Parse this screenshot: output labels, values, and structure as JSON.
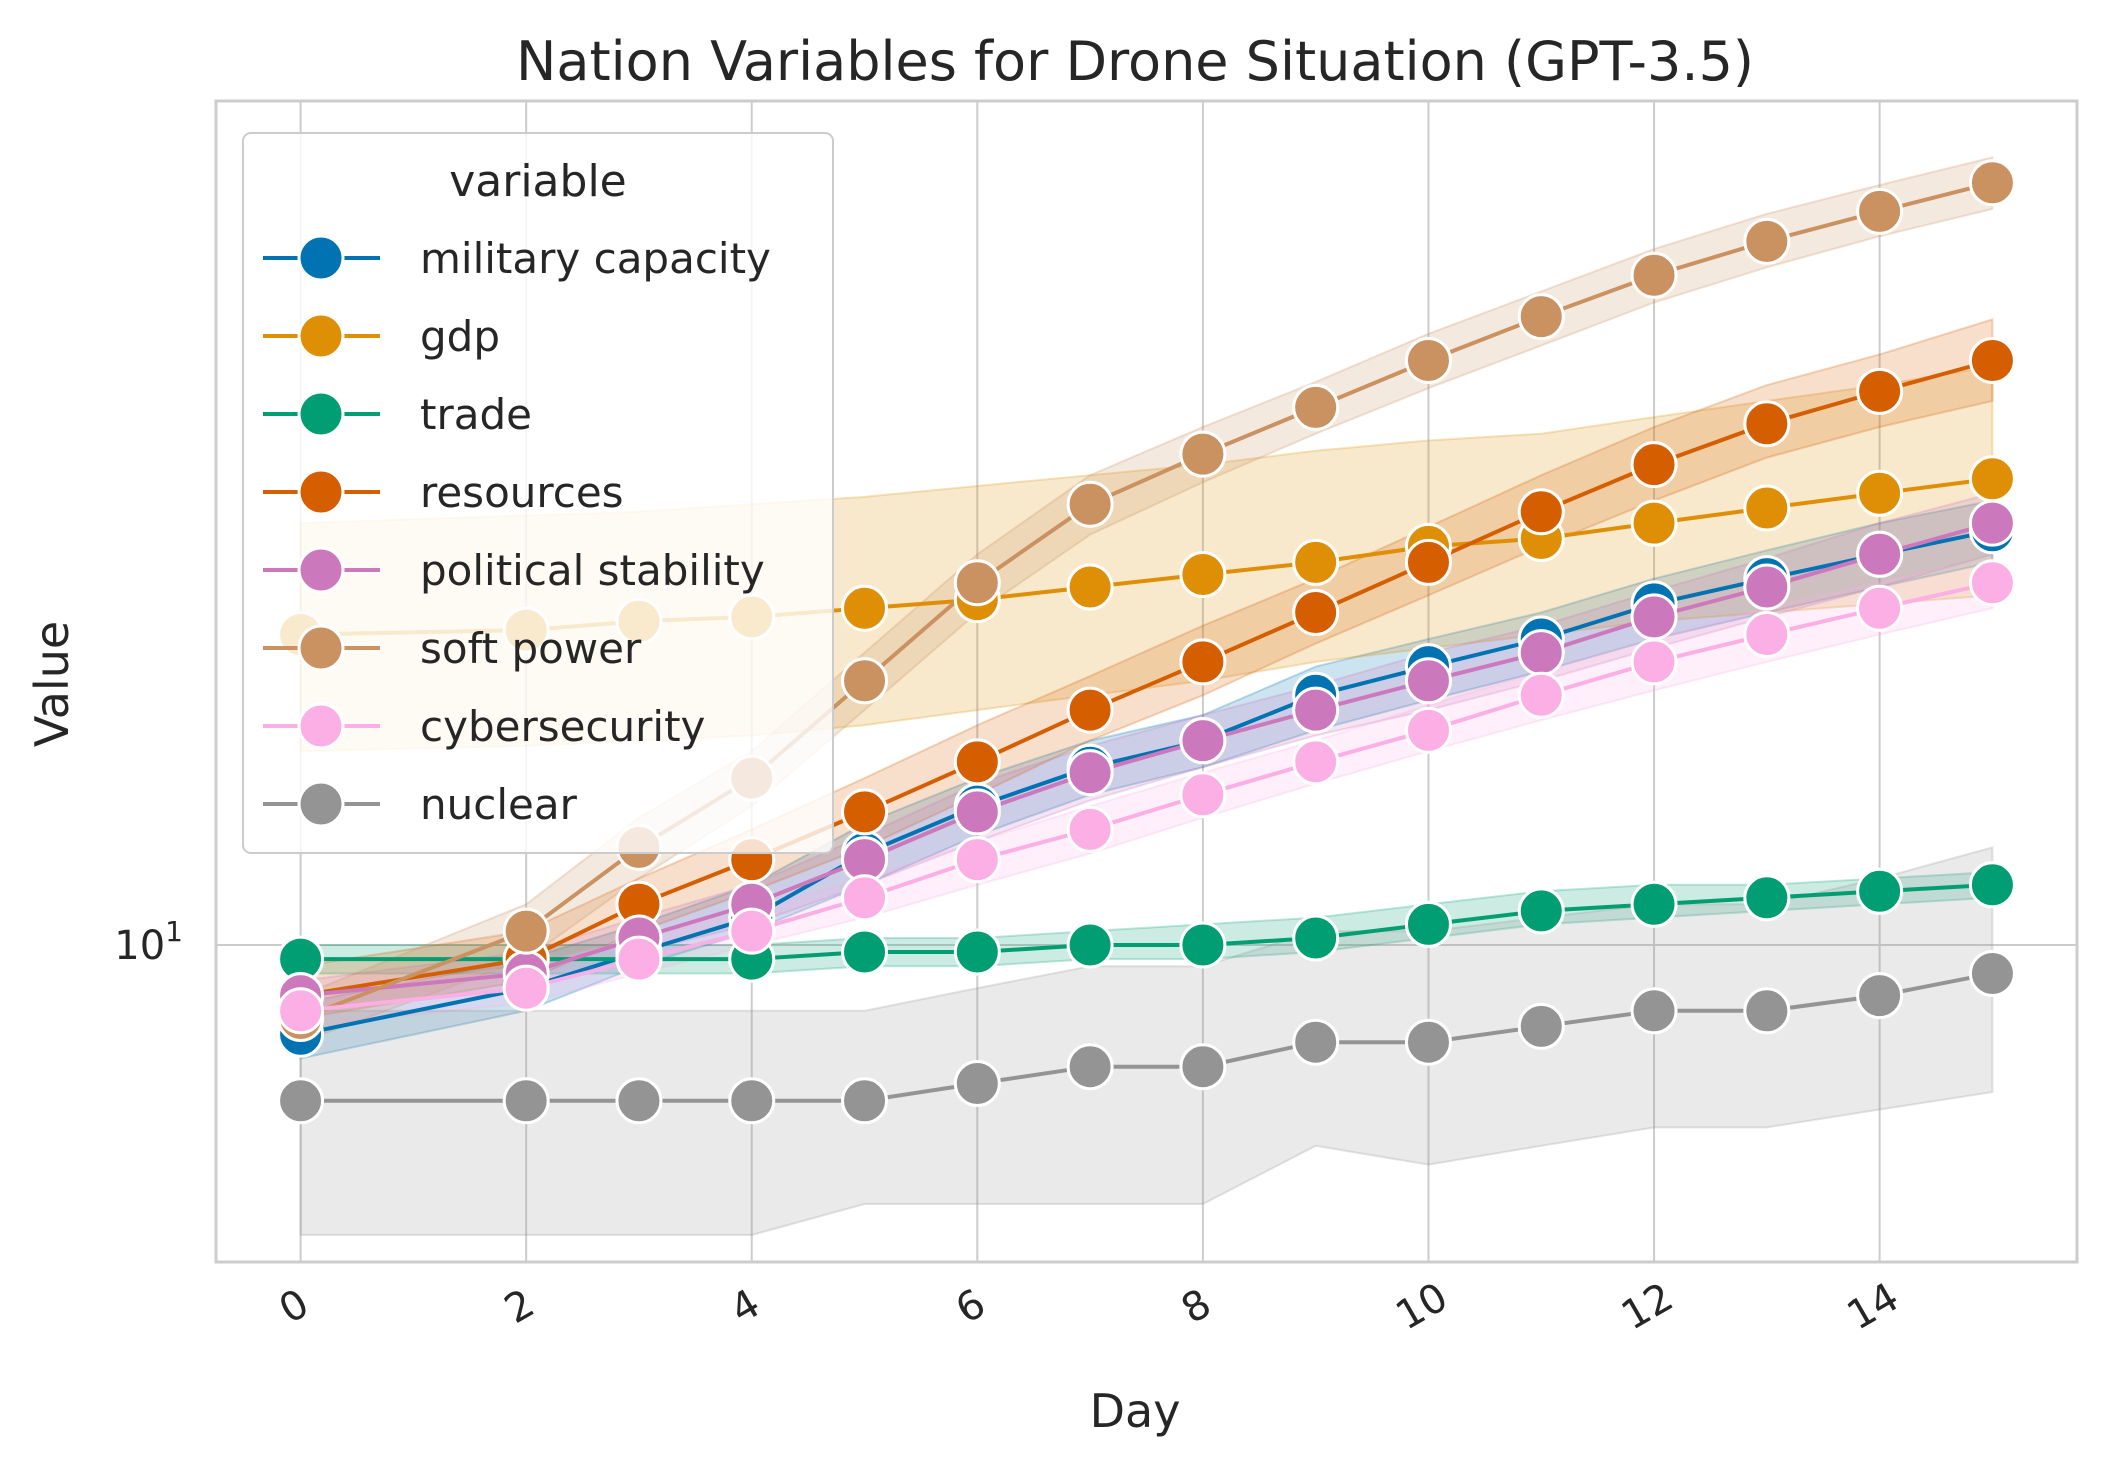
{
  "chart_data": {
    "type": "line",
    "title": "Nation Variables for Drone Situation (GPT-3.5)",
    "xlabel": "Day",
    "ylabel": "Value",
    "yscale": "log",
    "xlim": [
      -0.75,
      15.75
    ],
    "ylim": [
      6.35,
      33.5
    ],
    "x_ticks": [
      0,
      2,
      4,
      6,
      8,
      10,
      12,
      14
    ],
    "y_ticks": [
      {
        "value": 10,
        "base": "10",
        "exp": "1"
      }
    ],
    "grid": true,
    "legend": {
      "title": "variable",
      "position": "top-left"
    },
    "x": [
      0,
      2,
      3,
      4,
      5,
      6,
      7,
      8,
      9,
      10,
      11,
      12,
      13,
      14,
      15
    ],
    "series": [
      {
        "name": "military capacity",
        "color": "#0173b2",
        "values": [
          8.8,
          9.4,
          9.9,
          10.4,
          11.4,
          12.2,
          12.9,
          13.4,
          14.3,
          14.9,
          15.5,
          16.3,
          16.9,
          17.5,
          18.1
        ],
        "lower": [
          8.5,
          9.1,
          9.7,
          10.2,
          10.9,
          11.7,
          12.4,
          12.9,
          13.6,
          14.2,
          14.8,
          15.5,
          16.1,
          16.7,
          17.3
        ],
        "upper": [
          9.2,
          9.8,
          10.3,
          10.9,
          11.9,
          12.7,
          13.4,
          13.9,
          14.9,
          15.5,
          16.1,
          16.9,
          17.6,
          18.3,
          18.9
        ]
      },
      {
        "name": "gdp",
        "color": "#de8f05",
        "values": [
          15.6,
          15.7,
          15.9,
          16.0,
          16.2,
          16.4,
          16.7,
          17.0,
          17.3,
          17.7,
          17.9,
          18.3,
          18.7,
          19.1,
          19.5
        ],
        "lower": [
          13.2,
          13.3,
          13.4,
          13.5,
          13.7,
          14.0,
          14.3,
          14.6,
          15.0,
          15.3,
          15.6,
          15.9,
          16.1,
          16.3,
          16.5
        ],
        "upper": [
          18.3,
          18.5,
          18.6,
          18.8,
          19.0,
          19.3,
          19.6,
          19.9,
          20.3,
          20.6,
          20.8,
          21.3,
          21.8,
          22.3,
          22.9
        ]
      },
      {
        "name": "trade",
        "color": "#029e73",
        "values": [
          9.8,
          9.8,
          9.8,
          9.8,
          9.9,
          9.9,
          10.0,
          10.0,
          10.1,
          10.3,
          10.5,
          10.6,
          10.7,
          10.8,
          10.9
        ],
        "lower": [
          9.6,
          9.6,
          9.6,
          9.6,
          9.7,
          9.7,
          9.8,
          9.8,
          9.9,
          10.1,
          10.3,
          10.4,
          10.5,
          10.6,
          10.7
        ],
        "upper": [
          10.0,
          10.0,
          10.0,
          10.0,
          10.1,
          10.1,
          10.2,
          10.3,
          10.4,
          10.6,
          10.8,
          10.9,
          10.9,
          11.0,
          11.1
        ]
      },
      {
        "name": "resources",
        "color": "#d55e00",
        "values": [
          9.3,
          9.8,
          10.6,
          11.3,
          12.1,
          13.0,
          14.0,
          15.0,
          16.1,
          17.3,
          18.6,
          19.9,
          21.1,
          22.1,
          23.1
        ],
        "lower": [
          9.0,
          9.5,
          10.2,
          10.8,
          11.5,
          12.4,
          13.4,
          14.3,
          15.4,
          16.5,
          17.7,
          18.9,
          20.1,
          21.0,
          21.8
        ],
        "upper": [
          9.7,
          10.2,
          11.0,
          11.8,
          12.7,
          13.7,
          14.7,
          15.8,
          16.9,
          18.2,
          19.6,
          21.0,
          22.3,
          23.3,
          24.5
        ]
      },
      {
        "name": "political stability",
        "color": "#cc78bc",
        "values": [
          9.3,
          9.6,
          10.1,
          10.6,
          11.3,
          12.1,
          12.8,
          13.4,
          14.0,
          14.6,
          15.2,
          16.0,
          16.7,
          17.5,
          18.3
        ],
        "lower": [
          9.1,
          9.4,
          9.9,
          10.3,
          10.9,
          11.6,
          12.3,
          12.9,
          13.5,
          14.0,
          14.6,
          15.3,
          16.0,
          16.7,
          17.5
        ],
        "upper": [
          9.5,
          9.9,
          10.4,
          10.9,
          11.7,
          12.6,
          13.3,
          13.9,
          14.5,
          15.2,
          15.8,
          16.6,
          17.4,
          18.3,
          19.1
        ]
      },
      {
        "name": "soft power",
        "color": "#ca9161",
        "values": [
          9.0,
          10.2,
          11.5,
          12.7,
          14.6,
          16.8,
          18.8,
          20.2,
          21.6,
          23.1,
          24.6,
          26.1,
          27.4,
          28.6,
          29.8
        ],
        "lower": [
          8.7,
          9.8,
          11.0,
          12.2,
          14.0,
          16.1,
          18.0,
          19.4,
          20.8,
          22.2,
          23.6,
          25.1,
          26.4,
          27.6,
          28.7
        ],
        "upper": [
          9.3,
          10.6,
          12.0,
          13.2,
          15.2,
          17.5,
          19.6,
          21.0,
          22.4,
          24.0,
          25.5,
          27.1,
          28.5,
          29.7,
          30.9
        ]
      },
      {
        "name": "cybersecurity",
        "color": "#fbafe4",
        "values": [
          9.1,
          9.4,
          9.8,
          10.2,
          10.7,
          11.3,
          11.8,
          12.4,
          13.0,
          13.6,
          14.3,
          15.0,
          15.6,
          16.2,
          16.8
        ],
        "lower": [
          8.9,
          9.2,
          9.6,
          10.0,
          10.4,
          10.9,
          11.4,
          12.0,
          12.6,
          13.2,
          13.8,
          14.4,
          15.0,
          15.6,
          16.2
        ],
        "upper": [
          9.3,
          9.7,
          10.1,
          10.5,
          11.0,
          11.6,
          12.2,
          12.8,
          13.4,
          14.1,
          14.8,
          15.5,
          16.2,
          16.8,
          17.4
        ]
      },
      {
        "name": "nuclear",
        "color": "#949494",
        "values": [
          8.0,
          8.0,
          8.0,
          8.0,
          8.0,
          8.2,
          8.4,
          8.4,
          8.7,
          8.7,
          8.9,
          9.1,
          9.1,
          9.3,
          9.6
        ],
        "lower": [
          6.6,
          6.6,
          6.6,
          6.6,
          6.9,
          6.9,
          6.9,
          6.9,
          7.5,
          7.3,
          7.5,
          7.7,
          7.7,
          7.9,
          8.1
        ],
        "upper": [
          9.1,
          9.1,
          9.1,
          9.1,
          9.1,
          9.4,
          9.7,
          9.7,
          10.2,
          10.2,
          10.4,
          10.6,
          10.6,
          11.0,
          11.5
        ]
      }
    ]
  }
}
